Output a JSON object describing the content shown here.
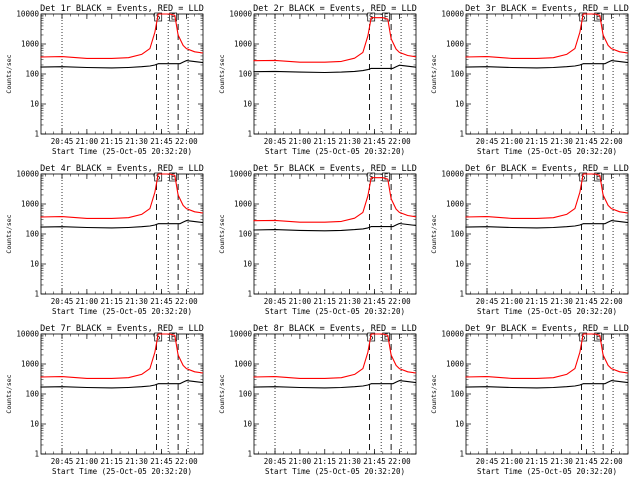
{
  "figure": {
    "start_time_label": "Start Time (25-Oct-05 20:32:20)",
    "ylabel": "Counts/sec",
    "x_tick_labels": [
      "20:45",
      "21:00",
      "21:15",
      "21:30",
      "21:45",
      "22:00"
    ],
    "y_tick_labels": [
      "1",
      "10",
      "100",
      "1000",
      "10000"
    ],
    "marker_labels": [
      "S",
      "E"
    ]
  },
  "panels": [
    {
      "title": "Det 1r BLACK = Events, RED = LLD"
    },
    {
      "title": "Det 2r BLACK = Events, RED = LLD"
    },
    {
      "title": "Det 3r BLACK = Events, RED = LLD"
    },
    {
      "title": "Det 4r BLACK = Events, RED = LLD"
    },
    {
      "title": "Det 5r BLACK = Events, RED = LLD"
    },
    {
      "title": "Det 6r BLACK = Events, RED = LLD"
    },
    {
      "title": "Det 7r BLACK = Events, RED = LLD"
    },
    {
      "title": "Det 8r BLACK = Events, RED = LLD"
    },
    {
      "title": "Det 9r BLACK = Events, RED = LLD"
    }
  ],
  "chart_data": {
    "type": "line",
    "panel_count": 9,
    "x_unit": "minutes after 20:32:20 UT, 25-Oct-05",
    "xlim_time": [
      "20:32:20",
      "22:10"
    ],
    "x_ticks_time": [
      "20:45",
      "21:00",
      "21:15",
      "21:30",
      "21:45",
      "22:00"
    ],
    "y_scale": "log",
    "ylim": [
      1,
      10000
    ],
    "y_ticks": [
      1,
      10,
      100,
      1000,
      10000
    ],
    "ylabel": "Counts/sec",
    "xlabel": "Start Time (25-Oct-05 20:32:20)",
    "grid": false,
    "colors": {
      "Events": "#000000",
      "LLD": "#ff0000"
    },
    "dotted_vertical_lines_time": [
      "20:45",
      "21:49",
      "22:01"
    ],
    "dashed_vertical_lines_time": [
      "21:42",
      "21:55"
    ],
    "time_markers": [
      {
        "label": "S",
        "time": "21:43"
      },
      {
        "label": "E",
        "time": "21:52"
      }
    ],
    "series": [
      {
        "name": "Events",
        "x_time": [
          "20:32",
          "20:45",
          "21:00",
          "21:15",
          "21:25",
          "21:33",
          "21:38",
          "21:41",
          "21:43",
          "21:56",
          "21:58",
          "22:00",
          "22:05",
          "22:10"
        ],
        "values": [
          170,
          175,
          165,
          160,
          165,
          175,
          185,
          200,
          220,
          220,
          250,
          280,
          260,
          240
        ]
      },
      {
        "name": "LLD",
        "x_time": [
          "20:32",
          "20:45",
          "21:00",
          "21:15",
          "21:25",
          "21:33",
          "21:38",
          "21:41",
          "21:43",
          "21:50",
          "21:53",
          "21:55",
          "21:58",
          "22:00",
          "22:05",
          "22:10"
        ],
        "values": [
          370,
          380,
          330,
          330,
          350,
          450,
          700,
          2500,
          10000,
          10000,
          9000,
          2000,
          900,
          700,
          550,
          500
        ]
      }
    ]
  }
}
